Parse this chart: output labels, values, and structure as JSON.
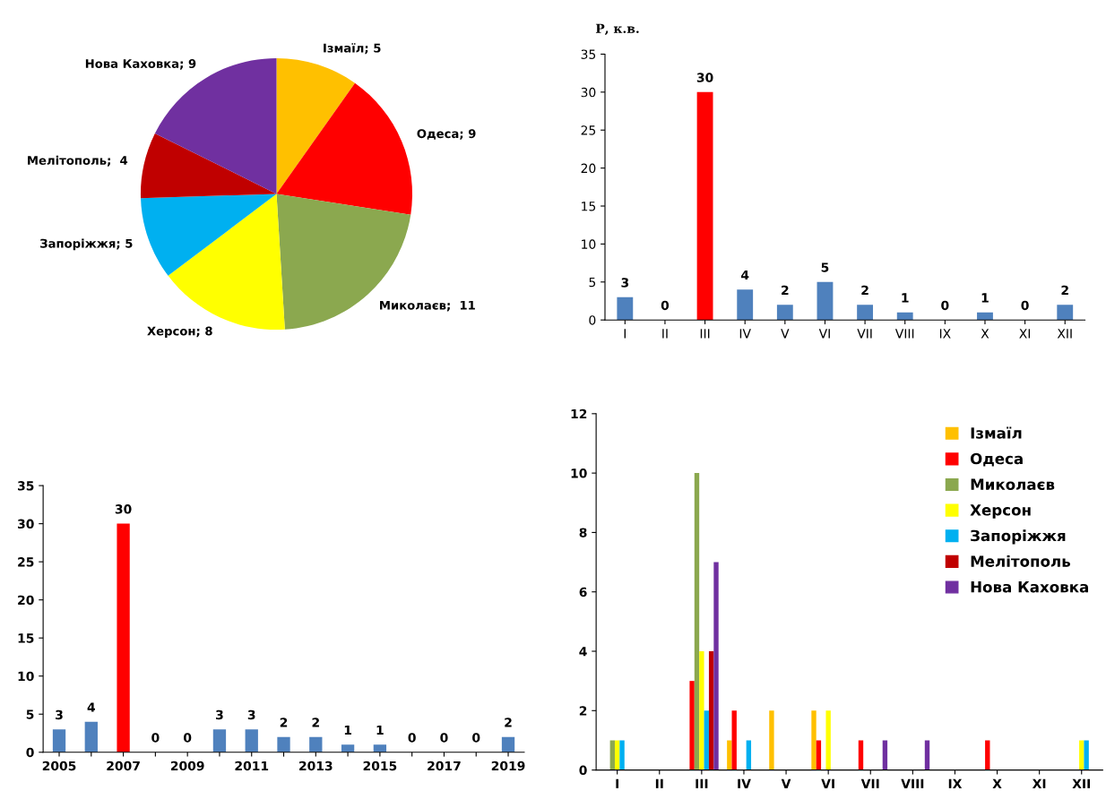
{
  "chart_data": [
    {
      "type": "pie",
      "categories": [
        "Ізмаїл; 5",
        "Одеса; 9",
        "Миколаєв;  11",
        "Херсон; 8",
        "Запоріжжя; 5",
        "Мелітополь;  4",
        "Нова Каховка; 9"
      ],
      "values": [
        5,
        9,
        11,
        8,
        5,
        4,
        9
      ],
      "colors": [
        "#ffc000",
        "#ff0000",
        "#8ba84f",
        "#ffff00",
        "#00b0f0",
        "#c00000",
        "#7030a0"
      ]
    },
    {
      "type": "bar",
      "ylabel": "Р, к.в.",
      "categories": [
        "I",
        "II",
        "III",
        "IV",
        "V",
        "VI",
        "VII",
        "VIII",
        "IX",
        "X",
        "XI",
        "XII"
      ],
      "values": [
        3,
        0,
        30,
        4,
        2,
        5,
        2,
        1,
        0,
        1,
        0,
        2
      ],
      "colors": [
        "#4f81bd",
        "#4f81bd",
        "#ff0000",
        "#4f81bd",
        "#4f81bd",
        "#4f81bd",
        "#4f81bd",
        "#4f81bd",
        "#4f81bd",
        "#4f81bd",
        "#4f81bd",
        "#4f81bd"
      ],
      "ylim": [
        0,
        35
      ],
      "yticks": [
        0,
        5,
        10,
        15,
        20,
        25,
        30,
        35
      ],
      "data_labels": true,
      "grid": false,
      "legend": false
    },
    {
      "type": "bar",
      "categories": [
        "2005",
        null,
        "2007",
        null,
        "2009",
        null,
        "2011",
        null,
        "2013",
        null,
        "2015",
        null,
        "2017",
        null,
        "2019"
      ],
      "values": [
        3,
        4,
        30,
        0,
        0,
        3,
        3,
        2,
        2,
        1,
        1,
        0,
        0,
        0,
        2
      ],
      "colors": [
        "#4f81bd",
        "#4f81bd",
        "#ff0000",
        "#4f81bd",
        "#4f81bd",
        "#4f81bd",
        "#4f81bd",
        "#4f81bd",
        "#4f81bd",
        "#4f81bd",
        "#4f81bd",
        "#4f81bd",
        "#4f81bd",
        "#4f81bd",
        "#4f81bd"
      ],
      "ylim": [
        0,
        35
      ],
      "yticks": [
        0,
        5,
        10,
        15,
        20,
        25,
        30,
        35
      ],
      "data_labels": true,
      "grid": false,
      "legend": false
    },
    {
      "type": "bar",
      "categories": [
        "I",
        "II",
        "III",
        "IV",
        "V",
        "VI",
        "VII",
        "VIII",
        "IX",
        "X",
        "XI",
        "XII"
      ],
      "ylim": [
        0,
        12
      ],
      "yticks": [
        0,
        2,
        4,
        6,
        8,
        10,
        12
      ],
      "grid": false,
      "legend": "top right",
      "series": [
        {
          "name": "Ізмаїл",
          "color": "#ffc000",
          "values": [
            0,
            0,
            0,
            1,
            2,
            2,
            0,
            0,
            0,
            0,
            0,
            0
          ]
        },
        {
          "name": "Одеса",
          "color": "#ff0000",
          "values": [
            0,
            0,
            3,
            2,
            0,
            1,
            1,
            0,
            0,
            1,
            0,
            0
          ]
        },
        {
          "name": "Миколаєв",
          "color": "#8ba84f",
          "values": [
            1,
            0,
            10,
            0,
            0,
            0,
            0,
            0,
            0,
            0,
            0,
            0
          ]
        },
        {
          "name": "Херсон",
          "color": "#ffff00",
          "values": [
            1,
            0,
            4,
            0,
            0,
            2,
            0,
            0,
            0,
            0,
            0,
            1
          ]
        },
        {
          "name": "Запоріжжя",
          "color": "#00b0f0",
          "values": [
            1,
            0,
            2,
            1,
            0,
            0,
            0,
            0,
            0,
            0,
            0,
            1
          ]
        },
        {
          "name": "Мелітополь",
          "color": "#c00000",
          "values": [
            0,
            0,
            4,
            0,
            0,
            0,
            0,
            0,
            0,
            0,
            0,
            0
          ]
        },
        {
          "name": "Нова Каховка",
          "color": "#7030a0",
          "values": [
            0,
            0,
            7,
            0,
            0,
            0,
            1,
            1,
            0,
            0,
            0,
            0
          ]
        }
      ]
    }
  ]
}
